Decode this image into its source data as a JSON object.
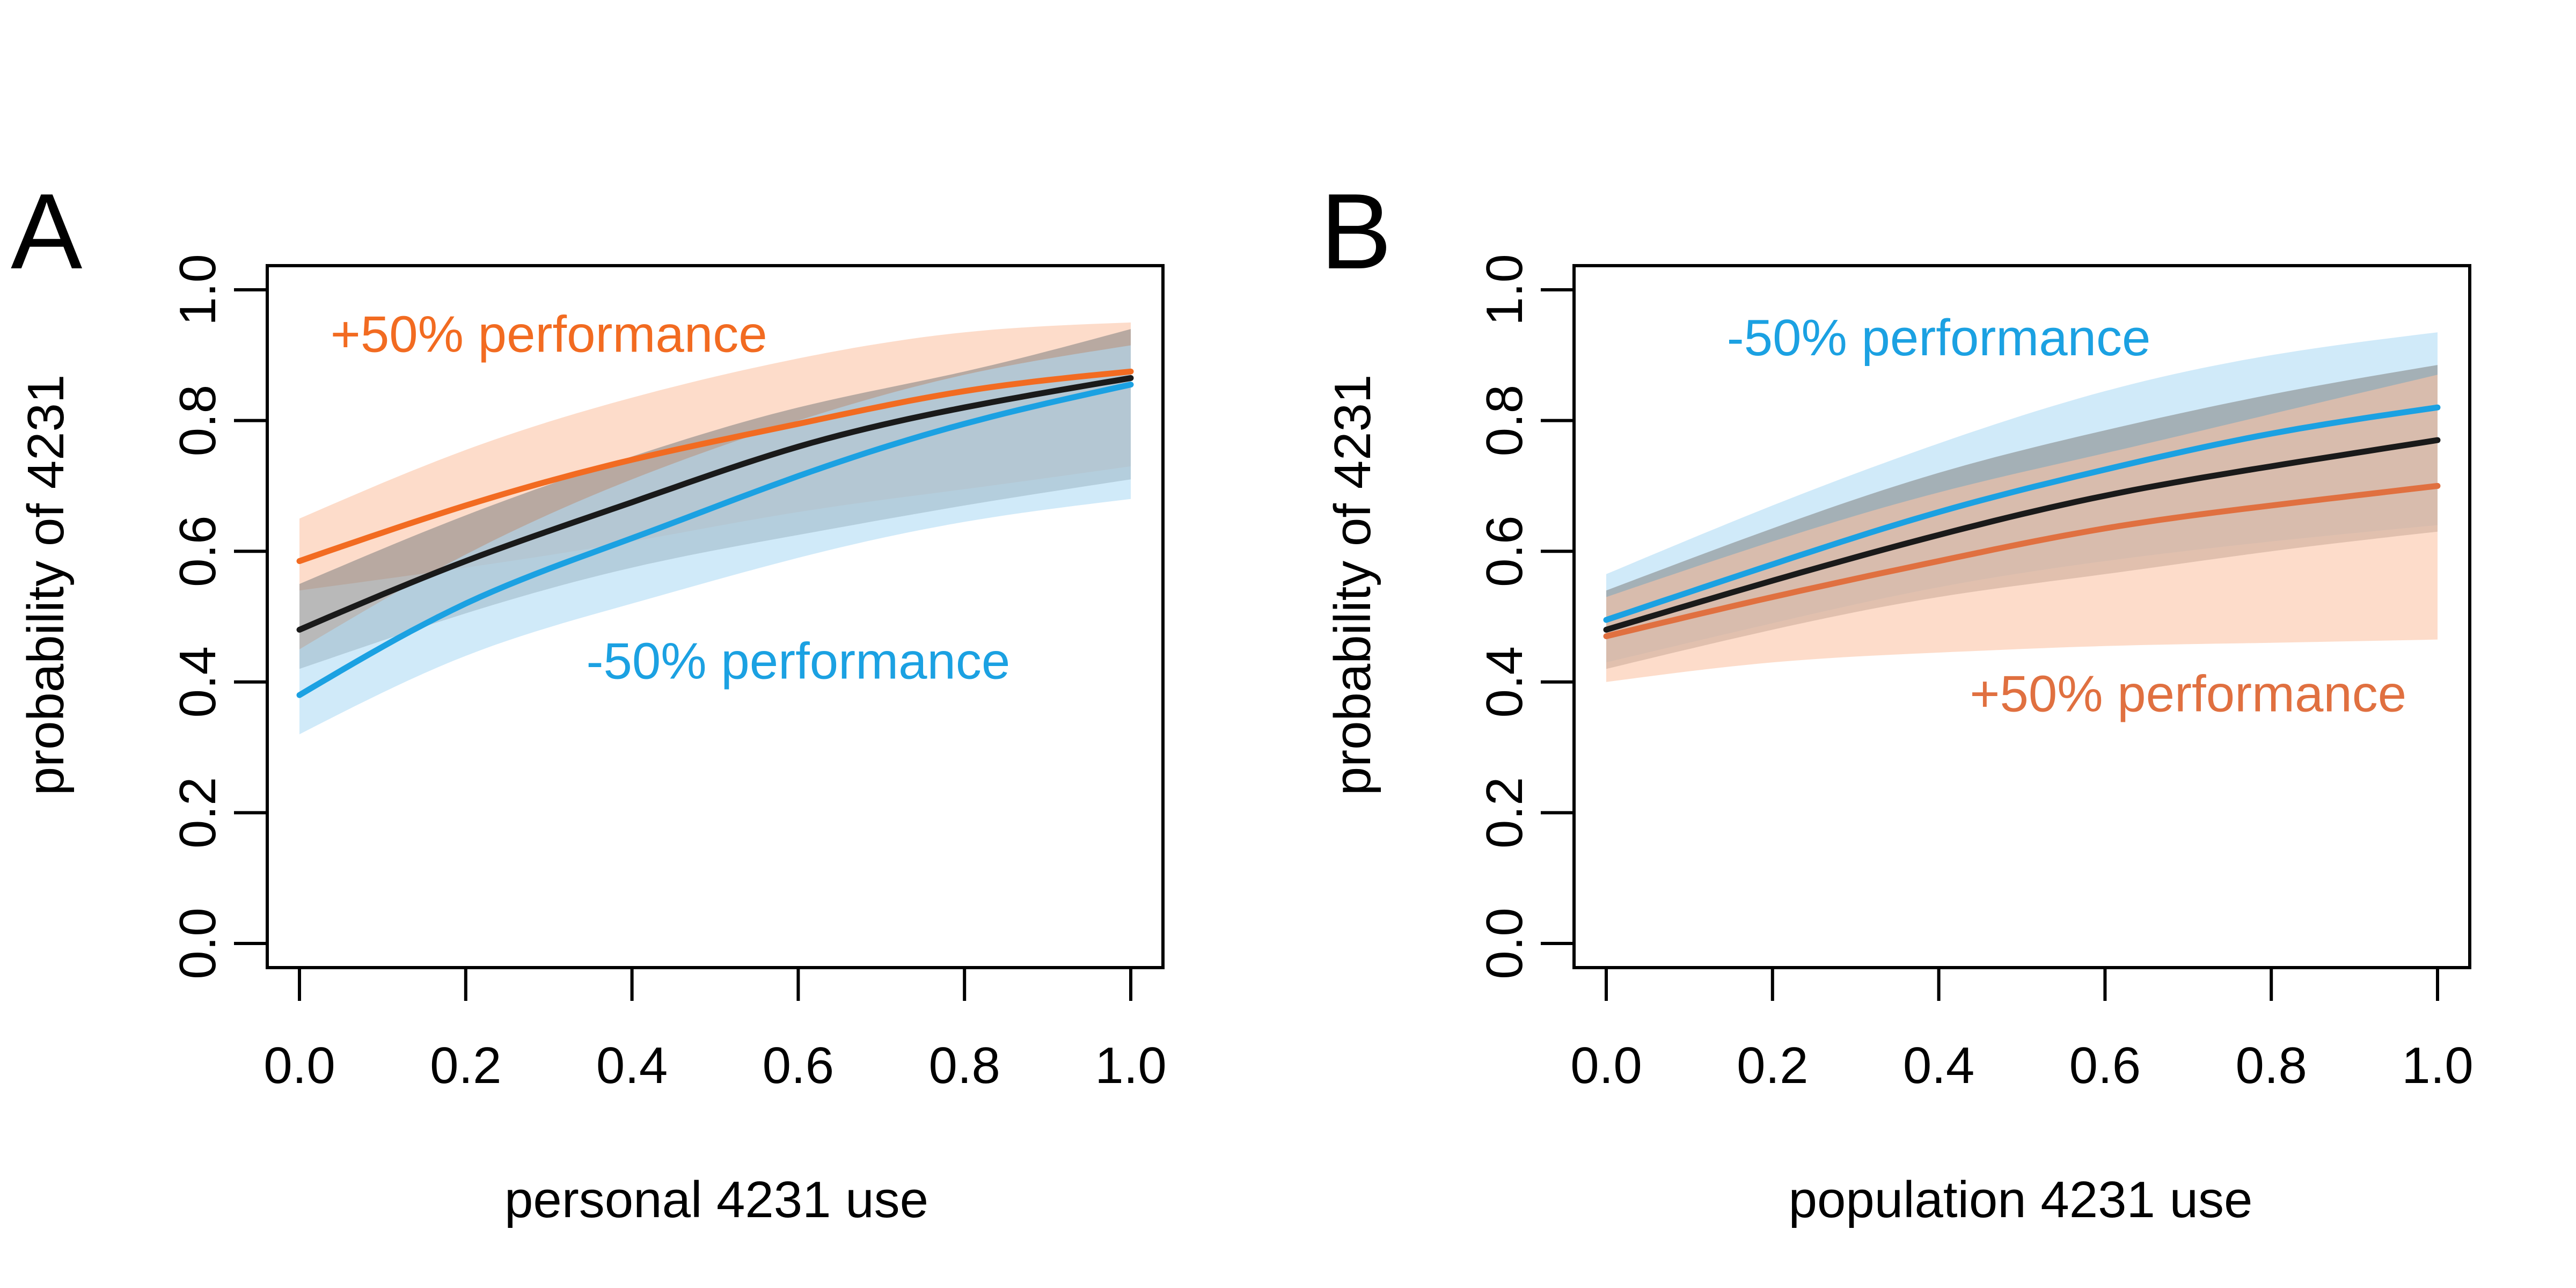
{
  "chart_data": [
    {
      "panel": "A",
      "type": "line",
      "xlabel": "personal 4231 use",
      "ylabel": "probability of 4231",
      "xlim": [
        0,
        1
      ],
      "ylim": [
        0,
        1
      ],
      "xticks": [
        "0.0",
        "0.2",
        "0.4",
        "0.6",
        "0.8",
        "1.0"
      ],
      "yticks": [
        "0.0",
        "0.2",
        "0.4",
        "0.6",
        "0.8",
        "1.0"
      ],
      "grid": false,
      "x": [
        0,
        0.2,
        0.4,
        0.6,
        0.8,
        1.0
      ],
      "series": [
        {
          "key": "plus",
          "name": "+50% performance",
          "color": "#f26b21",
          "band_color": "#fbc4a6",
          "values": [
            0.585,
            0.67,
            0.74,
            0.795,
            0.845,
            0.875
          ],
          "lower": [
            0.54,
            0.575,
            0.615,
            0.66,
            0.695,
            0.73
          ],
          "upper": [
            0.65,
            0.755,
            0.835,
            0.895,
            0.935,
            0.95
          ]
        },
        {
          "key": "base",
          "color": "#1a1a1a",
          "band_color": "#808080",
          "values": [
            0.48,
            0.585,
            0.675,
            0.76,
            0.82,
            0.865
          ],
          "lower": [
            0.42,
            0.505,
            0.575,
            0.625,
            0.67,
            0.71
          ],
          "upper": [
            0.55,
            0.655,
            0.745,
            0.82,
            0.875,
            0.94
          ]
        },
        {
          "key": "minus",
          "name": "-50% performance",
          "color": "#1ba1e2",
          "band_color": "#b0dcf5",
          "values": [
            0.38,
            0.52,
            0.62,
            0.715,
            0.795,
            0.855
          ],
          "lower": [
            0.32,
            0.44,
            0.52,
            0.59,
            0.645,
            0.68
          ],
          "upper": [
            0.45,
            0.595,
            0.71,
            0.8,
            0.87,
            0.915
          ]
        }
      ],
      "annotations": [
        {
          "series": "plus",
          "text": "+50% performance",
          "x": 0.3,
          "y": 0.905
        },
        {
          "series": "minus",
          "text": "-50% performance",
          "x": 0.6,
          "y": 0.405
        }
      ]
    },
    {
      "panel": "B",
      "type": "line",
      "xlabel": "population 4231 use",
      "ylabel": "probability of 4231",
      "xlim": [
        0,
        1
      ],
      "ylim": [
        0,
        1
      ],
      "xticks": [
        "0.0",
        "0.2",
        "0.4",
        "0.6",
        "0.8",
        "1.0"
      ],
      "yticks": [
        "0.0",
        "0.2",
        "0.4",
        "0.6",
        "0.8",
        "1.0"
      ],
      "grid": false,
      "x": [
        0,
        0.2,
        0.4,
        0.6,
        0.8,
        1.0
      ],
      "series": [
        {
          "key": "minus",
          "name": "-50% performance",
          "color": "#1ba1e2",
          "band_color": "#b0dcf5",
          "values": [
            0.495,
            0.58,
            0.66,
            0.725,
            0.78,
            0.82
          ],
          "lower": [
            0.43,
            0.49,
            0.545,
            0.585,
            0.615,
            0.64
          ],
          "upper": [
            0.565,
            0.67,
            0.765,
            0.845,
            0.9,
            0.935
          ]
        },
        {
          "key": "base",
          "color": "#1a1a1a",
          "band_color": "#808080",
          "values": [
            0.48,
            0.555,
            0.625,
            0.685,
            0.73,
            0.77
          ],
          "lower": [
            0.42,
            0.48,
            0.53,
            0.565,
            0.6,
            0.63
          ],
          "upper": [
            0.54,
            0.635,
            0.72,
            0.785,
            0.84,
            0.885
          ]
        },
        {
          "key": "plus",
          "name": "+50% performance",
          "color": "#e07040",
          "band_color": "#fbc4a6",
          "values": [
            0.47,
            0.53,
            0.585,
            0.635,
            0.67,
            0.7
          ],
          "lower": [
            0.4,
            0.43,
            0.445,
            0.455,
            0.46,
            0.465
          ],
          "upper": [
            0.53,
            0.615,
            0.69,
            0.75,
            0.81,
            0.87
          ]
        }
      ],
      "annotations": [
        {
          "series": "minus",
          "text": "-50% performance",
          "x": 0.4,
          "y": 0.9
        },
        {
          "series": "plus",
          "text": "+50% performance",
          "x": 0.7,
          "y": 0.355
        }
      ]
    }
  ]
}
